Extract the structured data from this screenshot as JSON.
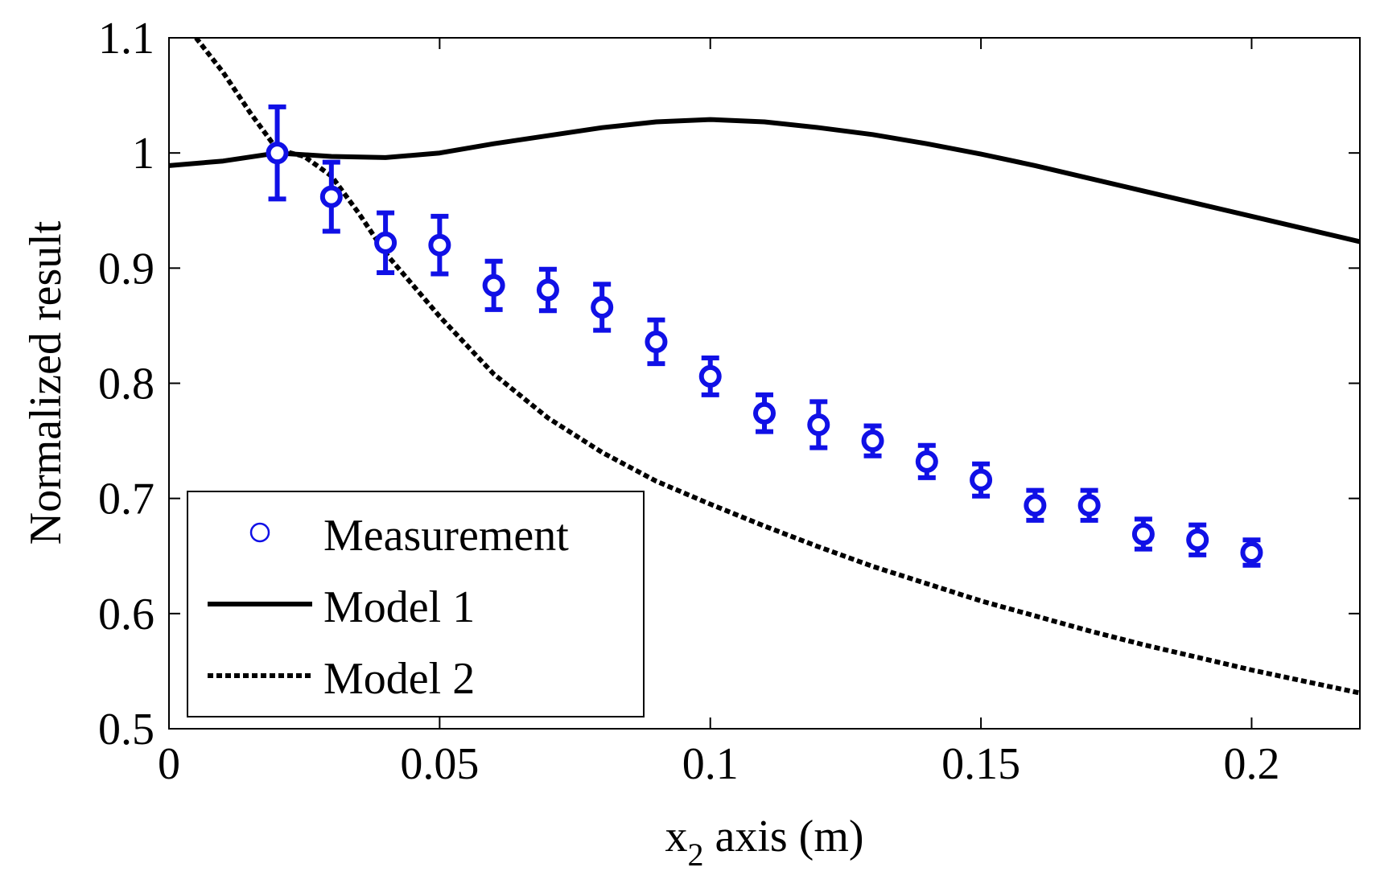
{
  "chart_data": {
    "type": "scatter",
    "title": "",
    "xlabel": {
      "main": "x",
      "sub": "2",
      "rest": " axis (m)"
    },
    "ylabel": "Normalized result",
    "xlim": [
      0,
      0.22
    ],
    "ylim": [
      0.5,
      1.1
    ],
    "xticks": [
      0,
      0.05,
      0.1,
      0.15,
      0.2
    ],
    "xtick_labels": [
      "0",
      "0.05",
      "0.1",
      "0.15",
      "0.2"
    ],
    "yticks": [
      0.5,
      0.6,
      0.7,
      0.8,
      0.9,
      1.0,
      1.1
    ],
    "ytick_labels": [
      "0.5",
      "0.6",
      "0.7",
      "0.8",
      "0.9",
      "1",
      "1.1"
    ],
    "grid": false,
    "legend_position": "bottom-left",
    "series": [
      {
        "name": "Measurement",
        "kind": "errorbar-markers",
        "color": "#1010e6",
        "x": [
          0.02,
          0.03,
          0.04,
          0.05,
          0.06,
          0.07,
          0.08,
          0.09,
          0.1,
          0.11,
          0.12,
          0.13,
          0.14,
          0.15,
          0.16,
          0.17,
          0.18,
          0.19,
          0.2
        ],
        "y": [
          1.0,
          0.962,
          0.922,
          0.92,
          0.885,
          0.881,
          0.866,
          0.836,
          0.806,
          0.774,
          0.764,
          0.75,
          0.732,
          0.716,
          0.694,
          0.694,
          0.669,
          0.664,
          0.653
        ],
        "err": [
          0.04,
          0.03,
          0.026,
          0.025,
          0.021,
          0.018,
          0.02,
          0.019,
          0.016,
          0.016,
          0.02,
          0.013,
          0.014,
          0.014,
          0.013,
          0.013,
          0.013,
          0.013,
          0.011
        ]
      },
      {
        "name": "Model 1",
        "kind": "line",
        "style": "solid",
        "color": "#000000",
        "x": [
          0,
          0.01,
          0.02,
          0.03,
          0.04,
          0.05,
          0.06,
          0.07,
          0.08,
          0.09,
          0.1,
          0.11,
          0.12,
          0.13,
          0.14,
          0.15,
          0.16,
          0.17,
          0.18,
          0.19,
          0.2,
          0.21,
          0.22
        ],
        "y": [
          0.989,
          0.993,
          1.0,
          0.997,
          0.996,
          1.0,
          1.008,
          1.015,
          1.022,
          1.027,
          1.029,
          1.027,
          1.022,
          1.016,
          1.008,
          0.999,
          0.989,
          0.978,
          0.967,
          0.956,
          0.945,
          0.934,
          0.923
        ]
      },
      {
        "name": "Model 2",
        "kind": "line",
        "style": "dashed",
        "color": "#000000",
        "x": [
          0.005,
          0.01,
          0.015,
          0.02,
          0.025,
          0.03,
          0.035,
          0.04,
          0.05,
          0.06,
          0.07,
          0.08,
          0.09,
          0.1,
          0.11,
          0.12,
          0.13,
          0.14,
          0.15,
          0.16,
          0.17,
          0.18,
          0.19,
          0.2,
          0.21,
          0.22
        ],
        "y": [
          1.1,
          1.07,
          1.035,
          1.003,
          0.997,
          0.98,
          0.948,
          0.913,
          0.858,
          0.808,
          0.77,
          0.74,
          0.715,
          0.695,
          0.676,
          0.658,
          0.641,
          0.626,
          0.611,
          0.598,
          0.585,
          0.573,
          0.562,
          0.551,
          0.541,
          0.531
        ]
      }
    ]
  }
}
